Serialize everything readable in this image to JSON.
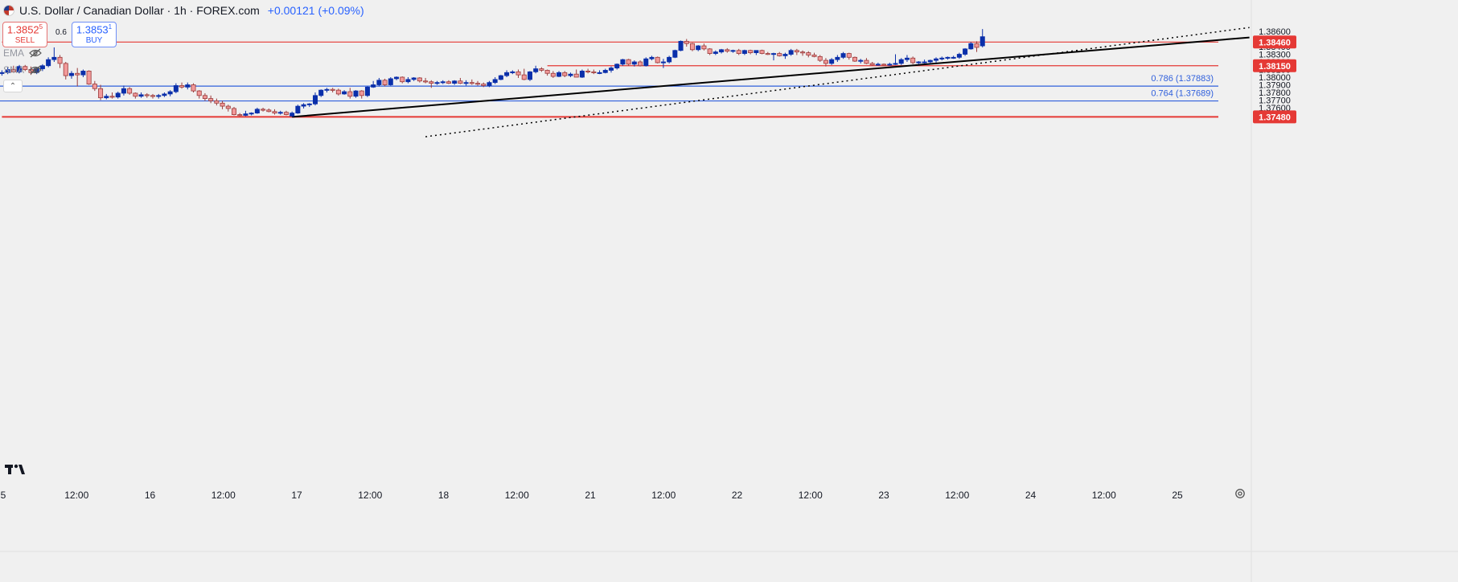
{
  "header": {
    "title": "U.S. Dollar / Canadian Dollar · 1h · FOREX.com",
    "change": "+0.00121 (+0.09%)"
  },
  "trade": {
    "sell_price": "1.3852",
    "sell_price_sup": "5",
    "sell_label": "SELL",
    "buy_price": "1.3853",
    "buy_price_sup": "1",
    "buy_label": "BUY",
    "spread": "0.6"
  },
  "indicators": [
    {
      "label": "EMA",
      "icon": "eye-off-icon"
    },
    {
      "label": "SMA",
      "icon": "eye-off-icon"
    }
  ],
  "colors": {
    "up_candle": "#0a2faa",
    "down_candle": "#f19a9a",
    "down_outline": "#9a3a3a",
    "red_level": "#e53935",
    "fib_level": "#2f5fdc",
    "trendline": "#000000"
  },
  "chart_data": {
    "type": "candlestick",
    "y_axis": {
      "range": [
        1.3742,
        1.3866
      ],
      "ticks": [
        "1.38600",
        "1.38500",
        "1.38400",
        "1.38300",
        "1.38200",
        "1.38100",
        "1.38000",
        "1.37900",
        "1.37800",
        "1.37700",
        "1.37600",
        "1.37500"
      ]
    },
    "x_axis": {
      "ticks": [
        "5",
        "12:00",
        "16",
        "12:00",
        "17",
        "12:00",
        "18",
        "12:00",
        "21",
        "12:00",
        "22",
        "12:00",
        "23",
        "12:00",
        "24",
        "12:00",
        "25"
      ]
    },
    "horizontal_levels": [
      {
        "price": 1.3846,
        "label": "1.38460",
        "kind": "resistance",
        "start_bar": 0
      },
      {
        "price": 1.3815,
        "label": "1.38150",
        "kind": "support",
        "start_bar": 94
      },
      {
        "price": 1.37883,
        "label": "0.786 (1.37883)",
        "kind": "fib"
      },
      {
        "price": 1.37689,
        "label": "0.764 (1.37689)",
        "kind": "fib"
      },
      {
        "price": 1.3748,
        "label": "1.37480",
        "kind": "support",
        "start_bar": 0
      }
    ],
    "trendlines": [
      {
        "style": "solid",
        "from": {
          "bar": 50,
          "price": 1.3748
        },
        "to": {
          "bar": 215,
          "price": 1.3852
        }
      },
      {
        "style": "dotted",
        "from": {
          "bar": 73,
          "price": 1.3722
        },
        "to": {
          "bar": 215,
          "price": 1.3865
        }
      }
    ],
    "candles": [
      [
        1.3805,
        1.3809,
        1.3802,
        1.3806
      ],
      [
        1.3806,
        1.3813,
        1.3804,
        1.381
      ],
      [
        1.381,
        1.3815,
        1.3806,
        1.3807
      ],
      [
        1.3807,
        1.3816,
        1.3805,
        1.3814
      ],
      [
        1.3814,
        1.3816,
        1.3808,
        1.381
      ],
      [
        1.381,
        1.3814,
        1.3803,
        1.3806
      ],
      [
        1.3806,
        1.3813,
        1.3804,
        1.3811
      ],
      [
        1.3811,
        1.3817,
        1.3808,
        1.3815
      ],
      [
        1.3815,
        1.3826,
        1.3813,
        1.3823
      ],
      [
        1.3823,
        1.3839,
        1.382,
        1.3826
      ],
      [
        1.3826,
        1.3829,
        1.3812,
        1.3818
      ],
      [
        1.3818,
        1.382,
        1.3797,
        1.3802
      ],
      [
        1.3802,
        1.3808,
        1.3798,
        1.3805
      ],
      [
        1.3805,
        1.3812,
        1.3788,
        1.3803
      ],
      [
        1.3803,
        1.381,
        1.38,
        1.3808
      ],
      [
        1.3808,
        1.3809,
        1.379,
        1.3791
      ],
      [
        1.3791,
        1.3795,
        1.3782,
        1.3785
      ],
      [
        1.3785,
        1.379,
        1.377,
        1.3773
      ],
      [
        1.3773,
        1.3778,
        1.3771,
        1.3775
      ],
      [
        1.3775,
        1.378,
        1.3772,
        1.3774
      ],
      [
        1.3774,
        1.3781,
        1.3772,
        1.3779
      ],
      [
        1.3779,
        1.3789,
        1.3776,
        1.3785
      ],
      [
        1.3785,
        1.3787,
        1.3777,
        1.3779
      ],
      [
        1.3779,
        1.378,
        1.3772,
        1.3775
      ],
      [
        1.3775,
        1.378,
        1.3773,
        1.3777
      ],
      [
        1.3777,
        1.3779,
        1.3773,
        1.3776
      ],
      [
        1.3776,
        1.3778,
        1.3772,
        1.3775
      ],
      [
        1.3775,
        1.3778,
        1.3772,
        1.3776
      ],
      [
        1.3776,
        1.378,
        1.3774,
        1.3778
      ],
      [
        1.3778,
        1.3783,
        1.3775,
        1.3781
      ],
      [
        1.3781,
        1.3792,
        1.3779,
        1.3789
      ],
      [
        1.3789,
        1.3793,
        1.3785,
        1.3787
      ],
      [
        1.3787,
        1.3793,
        1.3784,
        1.379
      ],
      [
        1.379,
        1.3792,
        1.378,
        1.3782
      ],
      [
        1.3782,
        1.3783,
        1.3772,
        1.3776
      ],
      [
        1.3776,
        1.3779,
        1.3769,
        1.3772
      ],
      [
        1.3772,
        1.3776,
        1.3766,
        1.3769
      ],
      [
        1.3769,
        1.3772,
        1.3763,
        1.3766
      ],
      [
        1.3766,
        1.3769,
        1.3758,
        1.3762
      ],
      [
        1.3762,
        1.3764,
        1.3755,
        1.3759
      ],
      [
        1.3759,
        1.3761,
        1.375,
        1.3751
      ],
      [
        1.3751,
        1.3753,
        1.3749,
        1.375
      ],
      [
        1.375,
        1.3756,
        1.3749,
        1.3752
      ],
      [
        1.3752,
        1.3754,
        1.375,
        1.3753
      ],
      [
        1.3753,
        1.376,
        1.3752,
        1.3758
      ],
      [
        1.3758,
        1.376,
        1.3755,
        1.3757
      ],
      [
        1.3757,
        1.3759,
        1.3754,
        1.3755
      ],
      [
        1.3755,
        1.3758,
        1.3751,
        1.3753
      ],
      [
        1.3753,
        1.3756,
        1.3751,
        1.3754
      ],
      [
        1.3754,
        1.3756,
        1.375,
        1.3751
      ],
      [
        1.3749,
        1.3755,
        1.3748,
        1.3753
      ],
      [
        1.3753,
        1.3764,
        1.3752,
        1.3762
      ],
      [
        1.3762,
        1.3766,
        1.3759,
        1.3764
      ],
      [
        1.3764,
        1.3766,
        1.3761,
        1.3765
      ],
      [
        1.3765,
        1.378,
        1.3763,
        1.3776
      ],
      [
        1.3776,
        1.3784,
        1.3774,
        1.3783
      ],
      [
        1.3783,
        1.3786,
        1.378,
        1.3784
      ],
      [
        1.3784,
        1.3786,
        1.378,
        1.3783
      ],
      [
        1.3783,
        1.3785,
        1.3776,
        1.3778
      ],
      [
        1.3778,
        1.3783,
        1.3777,
        1.3781
      ],
      [
        1.3781,
        1.3786,
        1.3772,
        1.3775
      ],
      [
        1.3775,
        1.3783,
        1.3773,
        1.3782
      ],
      [
        1.3782,
        1.3783,
        1.3772,
        1.3776
      ],
      [
        1.3776,
        1.3788,
        1.3774,
        1.3787
      ],
      [
        1.3787,
        1.3795,
        1.3786,
        1.379
      ],
      [
        1.379,
        1.3799,
        1.3788,
        1.3796
      ],
      [
        1.3796,
        1.3798,
        1.3788,
        1.379
      ],
      [
        1.379,
        1.38,
        1.3789,
        1.3798
      ],
      [
        1.3798,
        1.3801,
        1.3796,
        1.38
      ],
      [
        1.38,
        1.3801,
        1.3792,
        1.3794
      ],
      [
        1.3794,
        1.38,
        1.3792,
        1.3797
      ],
      [
        1.3797,
        1.38,
        1.3795,
        1.3799
      ],
      [
        1.3799,
        1.38,
        1.3793,
        1.3795
      ],
      [
        1.3795,
        1.3799,
        1.3792,
        1.3794
      ],
      [
        1.3794,
        1.3796,
        1.3786,
        1.3792
      ],
      [
        1.3792,
        1.3795,
        1.379,
        1.3793
      ],
      [
        1.3793,
        1.3796,
        1.3791,
        1.3794
      ],
      [
        1.3794,
        1.3796,
        1.3791,
        1.3792
      ],
      [
        1.3792,
        1.3796,
        1.379,
        1.3795
      ],
      [
        1.3795,
        1.3799,
        1.3791,
        1.3792
      ],
      [
        1.3792,
        1.3796,
        1.3789,
        1.3793
      ],
      [
        1.3793,
        1.3797,
        1.379,
        1.3792
      ],
      [
        1.3792,
        1.3795,
        1.3789,
        1.3791
      ],
      [
        1.3791,
        1.3793,
        1.3787,
        1.3789
      ],
      [
        1.3789,
        1.3795,
        1.3787,
        1.3793
      ],
      [
        1.3793,
        1.38,
        1.3791,
        1.3797
      ],
      [
        1.3797,
        1.3803,
        1.3796,
        1.3802
      ],
      [
        1.3802,
        1.3809,
        1.38,
        1.3806
      ],
      [
        1.3806,
        1.3809,
        1.3804,
        1.3807
      ],
      [
        1.3807,
        1.381,
        1.3799,
        1.3803
      ],
      [
        1.3803,
        1.3811,
        1.3796,
        1.3797
      ],
      [
        1.3797,
        1.3808,
        1.3795,
        1.3807
      ],
      [
        1.3807,
        1.3815,
        1.3805,
        1.3811
      ],
      [
        1.3811,
        1.3813,
        1.3807,
        1.3809
      ],
      [
        1.3809,
        1.381,
        1.3802,
        1.3805
      ],
      [
        1.3805,
        1.3808,
        1.3799,
        1.3801
      ],
      [
        1.3801,
        1.3808,
        1.38,
        1.3806
      ],
      [
        1.3806,
        1.3808,
        1.38,
        1.3802
      ],
      [
        1.3802,
        1.3806,
        1.38,
        1.3804
      ],
      [
        1.3804,
        1.381,
        1.38,
        1.38
      ],
      [
        1.38,
        1.381,
        1.3799,
        1.3808
      ],
      [
        1.3808,
        1.3811,
        1.3805,
        1.3807
      ],
      [
        1.3807,
        1.381,
        1.3804,
        1.3806
      ],
      [
        1.3806,
        1.3809,
        1.3804,
        1.3806
      ],
      [
        1.3806,
        1.3811,
        1.3805,
        1.3809
      ],
      [
        1.3809,
        1.3814,
        1.3806,
        1.3812
      ],
      [
        1.3812,
        1.3818,
        1.381,
        1.3817
      ],
      [
        1.3817,
        1.3824,
        1.3815,
        1.3823
      ],
      [
        1.3823,
        1.3824,
        1.3815,
        1.3817
      ],
      [
        1.3817,
        1.3822,
        1.3814,
        1.382
      ],
      [
        1.382,
        1.3822,
        1.3814,
        1.3815
      ],
      [
        1.3815,
        1.3826,
        1.3814,
        1.3824
      ],
      [
        1.3824,
        1.3828,
        1.3822,
        1.3826
      ],
      [
        1.3826,
        1.3827,
        1.3818,
        1.3819
      ],
      [
        1.3819,
        1.3824,
        1.3812,
        1.382
      ],
      [
        1.382,
        1.3828,
        1.3818,
        1.3826
      ],
      [
        1.3826,
        1.3836,
        1.3825,
        1.3835
      ],
      [
        1.3835,
        1.3848,
        1.3834,
        1.3847
      ],
      [
        1.3847,
        1.385,
        1.384,
        1.3844
      ],
      [
        1.3844,
        1.3845,
        1.3834,
        1.3836
      ],
      [
        1.3836,
        1.3842,
        1.3834,
        1.3841
      ],
      [
        1.3841,
        1.3844,
        1.3835,
        1.3837
      ],
      [
        1.3837,
        1.3838,
        1.3829,
        1.3831
      ],
      [
        1.3831,
        1.3835,
        1.3829,
        1.3833
      ],
      [
        1.3833,
        1.3837,
        1.3831,
        1.3836
      ],
      [
        1.3836,
        1.3838,
        1.3832,
        1.3834
      ],
      [
        1.3834,
        1.3836,
        1.3832,
        1.3835
      ],
      [
        1.3835,
        1.3837,
        1.3829,
        1.3831
      ],
      [
        1.3831,
        1.3836,
        1.3829,
        1.3835
      ],
      [
        1.3835,
        1.3836,
        1.383,
        1.3832
      ],
      [
        1.3832,
        1.3835,
        1.3829,
        1.3835
      ],
      [
        1.3835,
        1.3836,
        1.383,
        1.3831
      ],
      [
        1.3831,
        1.3833,
        1.3829,
        1.383
      ],
      [
        1.383,
        1.3832,
        1.3822,
        1.3831
      ],
      [
        1.3831,
        1.3833,
        1.3827,
        1.3828
      ],
      [
        1.3828,
        1.3832,
        1.3824,
        1.383
      ],
      [
        1.383,
        1.3837,
        1.3828,
        1.3835
      ],
      [
        1.3835,
        1.3837,
        1.3829,
        1.3833
      ],
      [
        1.3833,
        1.3835,
        1.3828,
        1.3832
      ],
      [
        1.3832,
        1.3834,
        1.3826,
        1.3829
      ],
      [
        1.3829,
        1.3832,
        1.3826,
        1.3827
      ],
      [
        1.3827,
        1.3829,
        1.382,
        1.3822
      ],
      [
        1.3822,
        1.3825,
        1.3814,
        1.3818
      ],
      [
        1.3818,
        1.3825,
        1.3816,
        1.3823
      ],
      [
        1.3823,
        1.3829,
        1.382,
        1.3826
      ],
      [
        1.3826,
        1.3833,
        1.3824,
        1.3831
      ],
      [
        1.3831,
        1.3832,
        1.3823,
        1.3826
      ],
      [
        1.3826,
        1.3827,
        1.382,
        1.3821
      ],
      [
        1.3821,
        1.3824,
        1.3818,
        1.3822
      ],
      [
        1.3822,
        1.3825,
        1.3817,
        1.3818
      ],
      [
        1.3818,
        1.382,
        1.3815,
        1.3816
      ],
      [
        1.3816,
        1.3819,
        1.3815,
        1.3817
      ],
      [
        1.3817,
        1.3818,
        1.3815,
        1.3816
      ],
      [
        1.3816,
        1.3819,
        1.3815,
        1.3817
      ],
      [
        1.3817,
        1.383,
        1.3816,
        1.3818
      ],
      [
        1.3818,
        1.3825,
        1.3816,
        1.3823
      ],
      [
        1.3823,
        1.3829,
        1.382,
        1.3825
      ],
      [
        1.3825,
        1.3827,
        1.3817,
        1.3819
      ],
      [
        1.3819,
        1.3821,
        1.3817,
        1.382
      ],
      [
        1.382,
        1.3823,
        1.3818,
        1.382
      ],
      [
        1.382,
        1.3823,
        1.3818,
        1.3822
      ],
      [
        1.3822,
        1.3826,
        1.3819,
        1.3824
      ],
      [
        1.3824,
        1.3827,
        1.3822,
        1.3825
      ],
      [
        1.3825,
        1.3827,
        1.3823,
        1.3826
      ],
      [
        1.3826,
        1.3828,
        1.3824,
        1.3826
      ],
      [
        1.3826,
        1.3832,
        1.3824,
        1.383
      ],
      [
        1.383,
        1.3838,
        1.3828,
        1.3837
      ],
      [
        1.3837,
        1.3846,
        1.3836,
        1.3844
      ],
      [
        1.3844,
        1.3847,
        1.3833,
        1.3839
      ],
      [
        1.3841,
        1.3863,
        1.3839,
        1.3853
      ]
    ]
  }
}
